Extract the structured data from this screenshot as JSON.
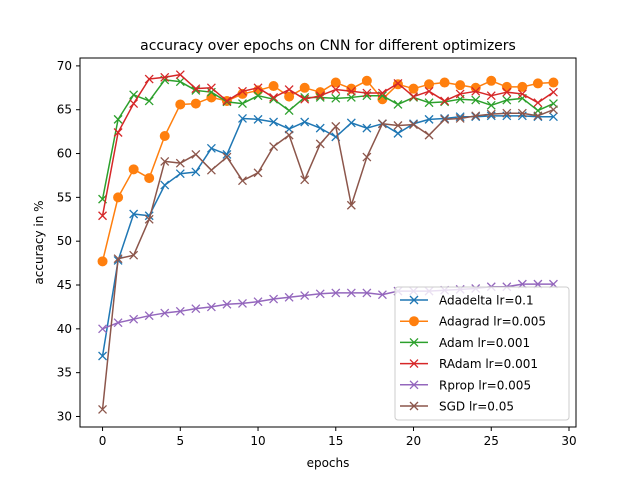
{
  "chart_data": {
    "type": "line",
    "title": "accuracy over epochs on CNN for different optimizers",
    "xlabel": "epochs",
    "ylabel": "accuracy in %",
    "xlim": [
      -1.45,
      30.45
    ],
    "ylim": [
      28.8,
      70.9
    ],
    "x": [
      0,
      1,
      2,
      3,
      4,
      5,
      6,
      7,
      8,
      9,
      10,
      11,
      12,
      13,
      14,
      15,
      16,
      17,
      18,
      19,
      20,
      21,
      22,
      23,
      24,
      25,
      26,
      27,
      28,
      29
    ],
    "x_ticks": [
      0,
      5,
      10,
      15,
      20,
      25,
      30
    ],
    "y_ticks": [
      30,
      35,
      40,
      45,
      50,
      55,
      60,
      65,
      70
    ],
    "grid": false,
    "legend_position": "lower-right",
    "series": [
      {
        "name": "Adadelta lr=0.1",
        "color": "#1f77b4",
        "marker": "x",
        "values": [
          36.9,
          47.8,
          53.1,
          52.9,
          56.4,
          57.7,
          57.9,
          60.6,
          59.9,
          64.0,
          63.9,
          63.6,
          62.8,
          63.6,
          62.9,
          61.9,
          63.5,
          62.9,
          63.4,
          62.3,
          63.4,
          63.9,
          64.0,
          64.2,
          64.2,
          64.3,
          64.3,
          64.3,
          64.2,
          64.2
        ]
      },
      {
        "name": "Adagrad lr=0.005",
        "color": "#ff7f0e",
        "marker": "o",
        "values": [
          47.7,
          55.0,
          58.2,
          57.2,
          62.0,
          65.6,
          65.7,
          66.4,
          66.0,
          66.8,
          67.2,
          67.7,
          66.5,
          67.5,
          67.0,
          68.1,
          67.4,
          68.3,
          66.2,
          67.9,
          67.4,
          67.9,
          68.1,
          67.8,
          67.5,
          68.3,
          67.6,
          67.6,
          68.0,
          68.1
        ]
      },
      {
        "name": "Adam lr=0.001",
        "color": "#2ca02c",
        "marker": "x",
        "values": [
          54.8,
          63.9,
          66.7,
          66.0,
          68.4,
          68.2,
          67.2,
          67.0,
          65.9,
          65.7,
          66.6,
          66.2,
          64.9,
          66.4,
          66.4,
          66.3,
          66.4,
          66.6,
          66.6,
          65.6,
          66.4,
          65.8,
          65.9,
          66.2,
          66.1,
          65.5,
          66.1,
          66.3,
          64.9,
          65.7
        ]
      },
      {
        "name": "RAdam lr=0.001",
        "color": "#d62728",
        "marker": "x",
        "values": [
          52.9,
          62.4,
          65.7,
          68.5,
          68.7,
          69.0,
          67.4,
          67.5,
          66.0,
          67.1,
          67.5,
          66.4,
          67.3,
          66.2,
          66.6,
          67.3,
          67.1,
          66.9,
          66.9,
          68.0,
          66.5,
          67.1,
          66.0,
          66.8,
          67.1,
          66.6,
          67.0,
          66.8,
          65.8,
          67.0
        ]
      },
      {
        "name": "Rprop lr=0.005",
        "color": "#9467bd",
        "marker": "x",
        "values": [
          40.0,
          40.7,
          41.1,
          41.5,
          41.8,
          42.0,
          42.3,
          42.5,
          42.8,
          42.9,
          43.1,
          43.4,
          43.6,
          43.8,
          44.0,
          44.1,
          44.1,
          44.1,
          43.9,
          44.3,
          44.3,
          44.3,
          44.4,
          44.5,
          44.6,
          44.8,
          44.8,
          45.1,
          45.1,
          45.1
        ]
      },
      {
        "name": "SGD lr=0.05",
        "color": "#8c564b",
        "marker": "x",
        "values": [
          30.8,
          48.0,
          48.4,
          52.5,
          59.1,
          58.9,
          59.9,
          58.1,
          59.6,
          56.9,
          57.8,
          60.8,
          62.1,
          57.0,
          61.1,
          63.1,
          54.1,
          59.6,
          63.4,
          63.2,
          63.3,
          62.1,
          63.9,
          64.0,
          64.3,
          64.5,
          64.6,
          64.6,
          64.3,
          65.0
        ]
      }
    ]
  }
}
